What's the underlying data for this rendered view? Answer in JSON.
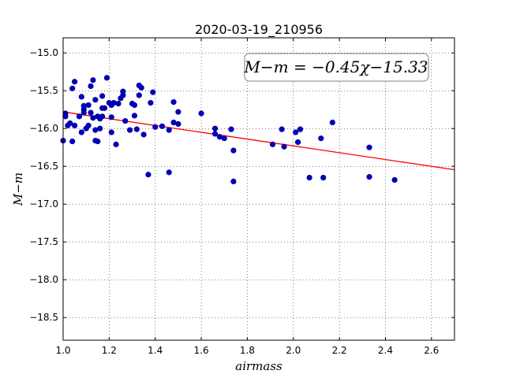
{
  "chart_data": {
    "type": "scatter",
    "title": "2020-03-19_210956",
    "xlabel": "airmass",
    "ylabel": "M−m",
    "xlim": [
      1.0,
      2.7
    ],
    "ylim": [
      -18.8,
      -14.8
    ],
    "y_inverted": true,
    "grid": true,
    "xticks": [
      1.0,
      1.2,
      1.4,
      1.6,
      1.8,
      2.0,
      2.2,
      2.4,
      2.6
    ],
    "xtick_labels": [
      "1.0",
      "1.2",
      "1.4",
      "1.6",
      "1.8",
      "2.0",
      "2.2",
      "2.4",
      "2.6"
    ],
    "yticks": [
      -15.0,
      -15.5,
      -16.0,
      -16.5,
      -17.0,
      -17.5,
      -18.0,
      -18.5
    ],
    "ytick_labels": [
      "−15.0",
      "−15.5",
      "−16.0",
      "−16.5",
      "−17.0",
      "−17.5",
      "−18.0",
      "−18.5"
    ],
    "annotation": "M−m = −0.45χ−15.33",
    "fit": {
      "slope": -0.45,
      "intercept": -15.33,
      "color": "#ff0000"
    },
    "point_color": "#0000bf",
    "points": [
      {
        "x": 1.0,
        "y": -16.16
      },
      {
        "x": 1.01,
        "y": -15.8
      },
      {
        "x": 1.01,
        "y": -15.84
      },
      {
        "x": 1.02,
        "y": -15.96
      },
      {
        "x": 1.03,
        "y": -15.93
      },
      {
        "x": 1.04,
        "y": -15.47
      },
      {
        "x": 1.04,
        "y": -16.17
      },
      {
        "x": 1.05,
        "y": -15.38
      },
      {
        "x": 1.05,
        "y": -15.96
      },
      {
        "x": 1.07,
        "y": -15.84
      },
      {
        "x": 1.08,
        "y": -15.58
      },
      {
        "x": 1.08,
        "y": -16.05
      },
      {
        "x": 1.09,
        "y": -15.75
      },
      {
        "x": 1.09,
        "y": -15.7
      },
      {
        "x": 1.09,
        "y": -15.79
      },
      {
        "x": 1.1,
        "y": -16.0
      },
      {
        "x": 1.11,
        "y": -15.96
      },
      {
        "x": 1.11,
        "y": -15.69
      },
      {
        "x": 1.12,
        "y": -15.79
      },
      {
        "x": 1.12,
        "y": -15.44
      },
      {
        "x": 1.13,
        "y": -15.86
      },
      {
        "x": 1.13,
        "y": -15.36
      },
      {
        "x": 1.14,
        "y": -15.62
      },
      {
        "x": 1.14,
        "y": -16.02
      },
      {
        "x": 1.14,
        "y": -16.16
      },
      {
        "x": 1.15,
        "y": -16.17
      },
      {
        "x": 1.15,
        "y": -15.84
      },
      {
        "x": 1.16,
        "y": -16.0
      },
      {
        "x": 1.16,
        "y": -15.87
      },
      {
        "x": 1.17,
        "y": -15.84
      },
      {
        "x": 1.17,
        "y": -15.57
      },
      {
        "x": 1.17,
        "y": -15.73
      },
      {
        "x": 1.18,
        "y": -15.73
      },
      {
        "x": 1.19,
        "y": -15.33
      },
      {
        "x": 1.2,
        "y": -15.66
      },
      {
        "x": 1.21,
        "y": -15.85
      },
      {
        "x": 1.21,
        "y": -16.05
      },
      {
        "x": 1.21,
        "y": -15.69
      },
      {
        "x": 1.22,
        "y": -15.66
      },
      {
        "x": 1.23,
        "y": -16.21
      },
      {
        "x": 1.24,
        "y": -15.67
      },
      {
        "x": 1.25,
        "y": -15.6
      },
      {
        "x": 1.26,
        "y": -15.56
      },
      {
        "x": 1.26,
        "y": -15.51
      },
      {
        "x": 1.27,
        "y": -15.9
      },
      {
        "x": 1.29,
        "y": -16.02
      },
      {
        "x": 1.3,
        "y": -15.67
      },
      {
        "x": 1.31,
        "y": -15.83
      },
      {
        "x": 1.31,
        "y": -15.69
      },
      {
        "x": 1.32,
        "y": -16.01
      },
      {
        "x": 1.33,
        "y": -15.56
      },
      {
        "x": 1.33,
        "y": -15.43
      },
      {
        "x": 1.34,
        "y": -15.46
      },
      {
        "x": 1.35,
        "y": -16.08
      },
      {
        "x": 1.37,
        "y": -16.61
      },
      {
        "x": 1.38,
        "y": -15.66
      },
      {
        "x": 1.39,
        "y": -15.52
      },
      {
        "x": 1.4,
        "y": -15.98
      },
      {
        "x": 1.43,
        "y": -15.97
      },
      {
        "x": 1.46,
        "y": -16.02
      },
      {
        "x": 1.46,
        "y": -16.58
      },
      {
        "x": 1.48,
        "y": -15.92
      },
      {
        "x": 1.48,
        "y": -15.65
      },
      {
        "x": 1.5,
        "y": -15.94
      },
      {
        "x": 1.5,
        "y": -15.78
      },
      {
        "x": 1.6,
        "y": -15.8
      },
      {
        "x": 1.66,
        "y": -16.0
      },
      {
        "x": 1.66,
        "y": -16.07
      },
      {
        "x": 1.68,
        "y": -16.11
      },
      {
        "x": 1.7,
        "y": -16.13
      },
      {
        "x": 1.73,
        "y": -16.01
      },
      {
        "x": 1.74,
        "y": -16.7
      },
      {
        "x": 1.74,
        "y": -16.29
      },
      {
        "x": 1.91,
        "y": -16.21
      },
      {
        "x": 1.95,
        "y": -16.01
      },
      {
        "x": 1.96,
        "y": -16.24
      },
      {
        "x": 2.01,
        "y": -16.05
      },
      {
        "x": 2.02,
        "y": -16.18
      },
      {
        "x": 2.03,
        "y": -16.01
      },
      {
        "x": 2.07,
        "y": -16.65
      },
      {
        "x": 2.12,
        "y": -16.13
      },
      {
        "x": 2.13,
        "y": -16.65
      },
      {
        "x": 2.17,
        "y": -15.92
      },
      {
        "x": 2.33,
        "y": -16.25
      },
      {
        "x": 2.33,
        "y": -16.64
      },
      {
        "x": 2.44,
        "y": -16.68
      }
    ]
  }
}
